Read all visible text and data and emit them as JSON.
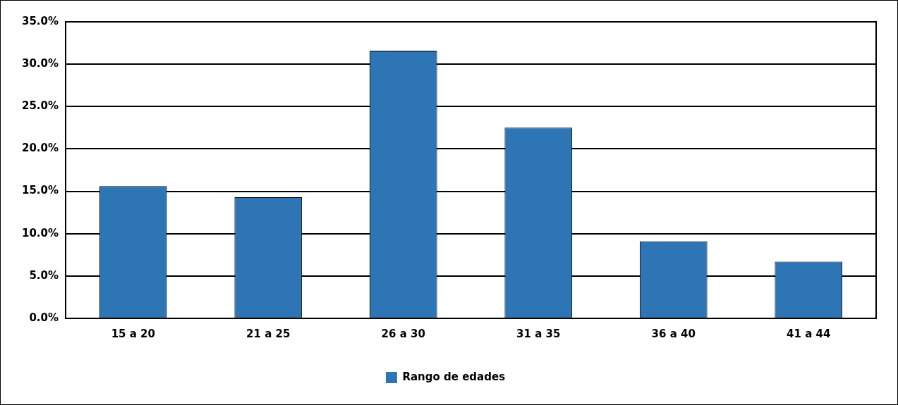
{
  "chart_data": {
    "type": "bar",
    "categories": [
      "15 a 20",
      "21 a 25",
      "26 a 30",
      "31 a 35",
      "36 a 40",
      "41 a 44"
    ],
    "series": [
      {
        "name": "Rango de edades",
        "color": "#2e75b6",
        "values": [
          15.6,
          14.3,
          31.6,
          22.5,
          9.1,
          6.7
        ]
      }
    ],
    "ylim": [
      0,
      35
    ],
    "yticks": [
      {
        "value": 0,
        "label": "0.0%"
      },
      {
        "value": 5,
        "label": "5.0%"
      },
      {
        "value": 10,
        "label": "10.0%"
      },
      {
        "value": 15,
        "label": "15.0%"
      },
      {
        "value": 20,
        "label": "20.0%"
      },
      {
        "value": 25,
        "label": "25.0%"
      },
      {
        "value": 30,
        "label": "30.0%"
      },
      {
        "value": 35,
        "label": "35.0%"
      }
    ],
    "grid": "y",
    "legend": "bottom"
  }
}
